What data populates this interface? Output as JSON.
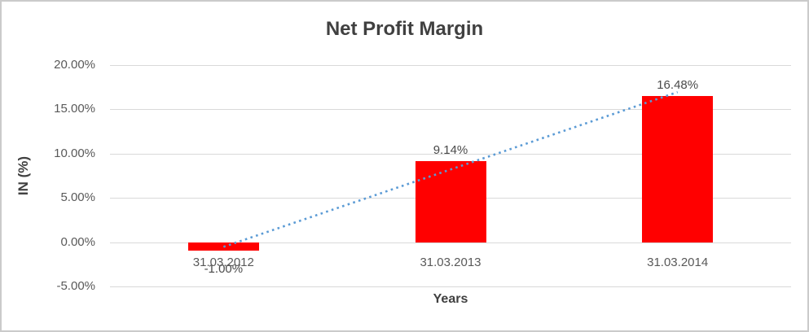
{
  "chart_data": {
    "type": "bar",
    "title": "Net Profit Margin",
    "xlabel": "Years",
    "ylabel": "IN (%)",
    "categories": [
      "31.03.2012",
      "31.03.2013",
      "31.03.2014"
    ],
    "values": [
      -1.0,
      9.14,
      16.48
    ],
    "data_labels": [
      "-1.00%",
      "9.14%",
      "16.48%"
    ],
    "y_ticks": [
      {
        "value": 20,
        "label": "20.00%"
      },
      {
        "value": 15,
        "label": "15.00%"
      },
      {
        "value": 10,
        "label": "10.00%"
      },
      {
        "value": 5,
        "label": "5.00%"
      },
      {
        "value": 0,
        "label": "0.00%"
      },
      {
        "value": -5,
        "label": "-5.00%"
      }
    ],
    "ylim": [
      -5,
      20
    ],
    "grid": true,
    "legend": false,
    "bar_color": "#FF0000",
    "trendline": {
      "type": "linear",
      "line_style": "dotted",
      "color": "#5B9BD5",
      "start_value": -0.53,
      "end_value": 16.95
    }
  },
  "colors": {
    "background": "#FFFFFF",
    "border": "#CBCBCB",
    "grid": "#D9D9D9",
    "axis_text": "#595959",
    "title_text": "#404040"
  }
}
